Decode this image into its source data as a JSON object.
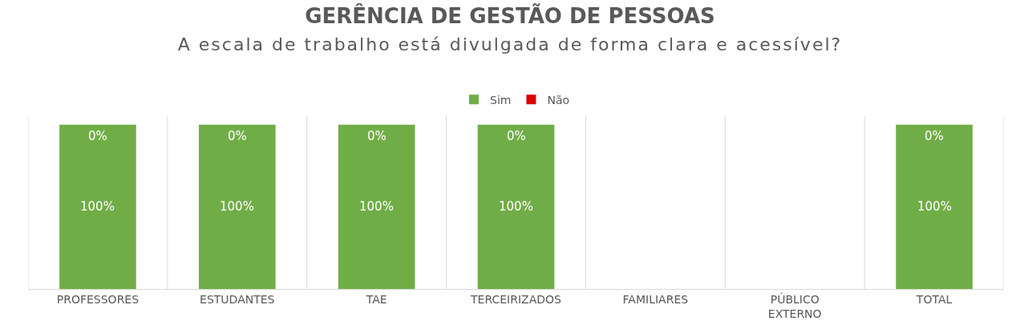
{
  "chart_data": {
    "type": "bar",
    "stacked": true,
    "title": "GERÊNCIA DE GESTÃO DE PESSOAS",
    "subtitle": "A escala de trabalho está divulgada de forma clara e acessível?",
    "categories": [
      "PROFESSORES",
      "ESTUDANTES",
      "TAE",
      "TERCEIRIZADOS",
      "FAMILIARES",
      "PÚBLICO EXTERNO",
      "TOTAL"
    ],
    "series": [
      {
        "name": "Sim",
        "color": "#70ad47",
        "values": [
          100,
          100,
          100,
          100,
          0,
          0,
          100
        ],
        "value_labels": [
          "100%",
          "100%",
          "100%",
          "100%",
          null,
          null,
          "100%"
        ]
      },
      {
        "name": "Não",
        "color": "#e00000",
        "values": [
          0,
          0,
          0,
          0,
          0,
          0,
          0
        ],
        "value_labels": [
          "0%",
          "0%",
          "0%",
          "0%",
          null,
          null,
          "0%"
        ]
      }
    ],
    "legend": "top",
    "grid": "x"
  }
}
